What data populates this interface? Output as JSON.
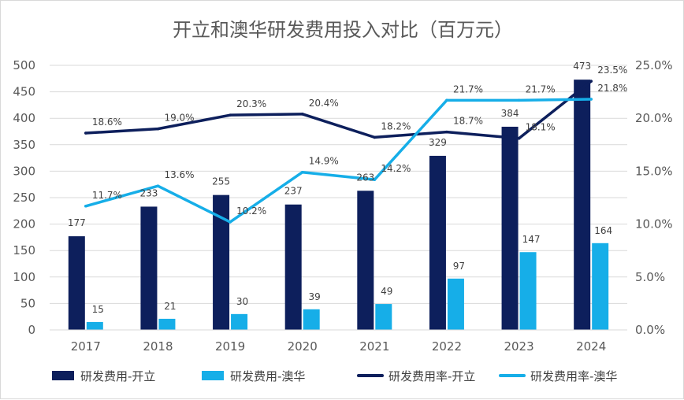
{
  "chart_data": {
    "type": "bar",
    "title": "开立和澳华研发费用投入对比（百万元）",
    "categories": [
      "2017",
      "2018",
      "2019",
      "2020",
      "2021",
      "2022",
      "2023",
      "2024"
    ],
    "left_axis": {
      "min": 0,
      "max": 500,
      "step": 50,
      "ticks": [
        "0",
        "50",
        "100",
        "150",
        "200",
        "250",
        "300",
        "350",
        "400",
        "450",
        "500"
      ]
    },
    "right_axis": {
      "min": 0,
      "max": 25,
      "step": 5,
      "ticks": [
        "0.0%",
        "5.0%",
        "10.0%",
        "15.0%",
        "20.0%",
        "25.0%"
      ]
    },
    "grid": true,
    "legend_position": "bottom",
    "bar_series": [
      {
        "name": "研发费用-开立",
        "color": "#0d1f5c",
        "values": [
          177,
          233,
          255,
          237,
          263,
          329,
          384,
          473
        ],
        "labels": [
          "177",
          "233",
          "255",
          "237",
          "263",
          "329",
          "384",
          "473"
        ]
      },
      {
        "name": "研发费用-澳华",
        "color": "#16aee8",
        "values": [
          15,
          21,
          30,
          39,
          49,
          97,
          147,
          164
        ],
        "labels": [
          "15",
          "21",
          "30",
          "39",
          "49",
          "97",
          "147",
          "164"
        ]
      }
    ],
    "line_series": [
      {
        "name": "研发费用率-开立",
        "color": "#0d1f5c",
        "values": [
          18.6,
          19.0,
          20.3,
          20.4,
          18.2,
          18.7,
          18.1,
          23.5
        ],
        "labels": [
          "18.6%",
          "19.0%",
          "20.3%",
          "20.4%",
          "18.2%",
          "18.7%",
          "18.1%",
          "23.5%"
        ]
      },
      {
        "name": "研发费用率-澳华",
        "color": "#16aee8",
        "values": [
          11.7,
          13.6,
          10.2,
          14.9,
          14.2,
          21.7,
          21.7,
          21.8
        ],
        "labels": [
          "11.7%",
          "13.6%",
          "10.2%",
          "14.9%",
          "14.2%",
          "21.7%",
          "21.7%",
          "21.8%"
        ]
      }
    ]
  }
}
